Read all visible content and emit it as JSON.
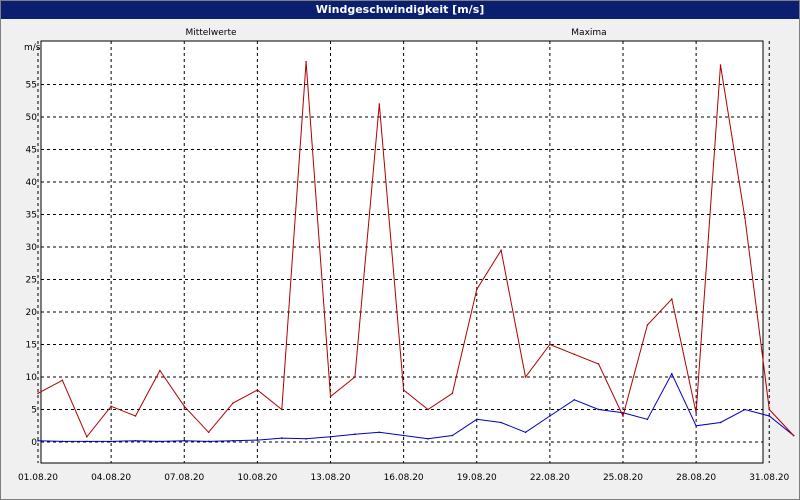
{
  "window": {
    "title": "Windgeschwindigkeit [m/s]"
  },
  "chart_data": {
    "type": "line",
    "title": "Windgeschwindigkeit [m/s]",
    "ylabel": "m/s",
    "xlabel": "",
    "ylim": [
      -2,
      60
    ],
    "yticks": [
      0,
      5,
      10,
      15,
      20,
      25,
      30,
      35,
      40,
      45,
      50,
      55
    ],
    "xlim": [
      "01.08.20",
      "02.09.20"
    ],
    "xticks": [
      "01.08.20",
      "04.08.20",
      "07.08.20",
      "10.08.20",
      "13.08.20",
      "16.08.20",
      "19.08.20",
      "22.08.20",
      "25.08.20",
      "28.08.20",
      "31.08.20"
    ],
    "grid": true,
    "legend_position": "top",
    "series": [
      {
        "name": "Mittelwerte",
        "color": "#0000c0",
        "x": [
          "01.08.20",
          "02.08.20",
          "03.08.20",
          "04.08.20",
          "05.08.20",
          "06.08.20",
          "07.08.20",
          "08.08.20",
          "09.08.20",
          "10.08.20",
          "11.08.20",
          "12.08.20",
          "13.08.20",
          "14.08.20",
          "15.08.20",
          "16.08.20",
          "17.08.20",
          "18.08.20",
          "19.08.20",
          "20.08.20",
          "21.08.20",
          "22.08.20",
          "23.08.20",
          "24.08.20",
          "25.08.20",
          "26.08.20",
          "27.08.20",
          "28.08.20",
          "29.08.20",
          "30.08.20",
          "31.08.20",
          "01.09.20"
        ],
        "values": [
          0.2,
          0.1,
          0.1,
          0.1,
          0.2,
          0.1,
          0.2,
          0.1,
          0.2,
          0.3,
          0.6,
          0.5,
          0.8,
          1.2,
          1.5,
          1.0,
          0.5,
          1.0,
          3.5,
          3.0,
          1.5,
          4.0,
          6.5,
          5.0,
          4.5,
          3.5,
          10.5,
          2.5,
          3.0,
          5.0,
          4.0,
          1.0
        ]
      },
      {
        "name": "Maxima",
        "color": "#b00000",
        "x": [
          "01.08.20",
          "02.08.20",
          "03.08.20",
          "04.08.20",
          "05.08.20",
          "06.08.20",
          "07.08.20",
          "08.08.20",
          "09.08.20",
          "10.08.20",
          "11.08.20",
          "12.08.20",
          "13.08.20",
          "14.08.20",
          "15.08.20",
          "16.08.20",
          "17.08.20",
          "18.08.20",
          "19.08.20",
          "20.08.20",
          "21.08.20",
          "22.08.20",
          "23.08.20",
          "24.08.20",
          "25.08.20",
          "26.08.20",
          "27.08.20",
          "28.08.20",
          "29.08.20",
          "30.08.20",
          "31.08.20",
          "01.09.20"
        ],
        "values": [
          7.5,
          9.5,
          0.8,
          5.5,
          4.0,
          11.0,
          5.5,
          1.5,
          6.0,
          8.0,
          5.0,
          58.5,
          7.0,
          10.0,
          52.0,
          8.0,
          5.0,
          7.5,
          23.5,
          29.5,
          10.0,
          15.0,
          13.5,
          12.0,
          4.0,
          18.0,
          22.0,
          4.5,
          58.0,
          34.5,
          5.0,
          1.0
        ]
      }
    ]
  }
}
